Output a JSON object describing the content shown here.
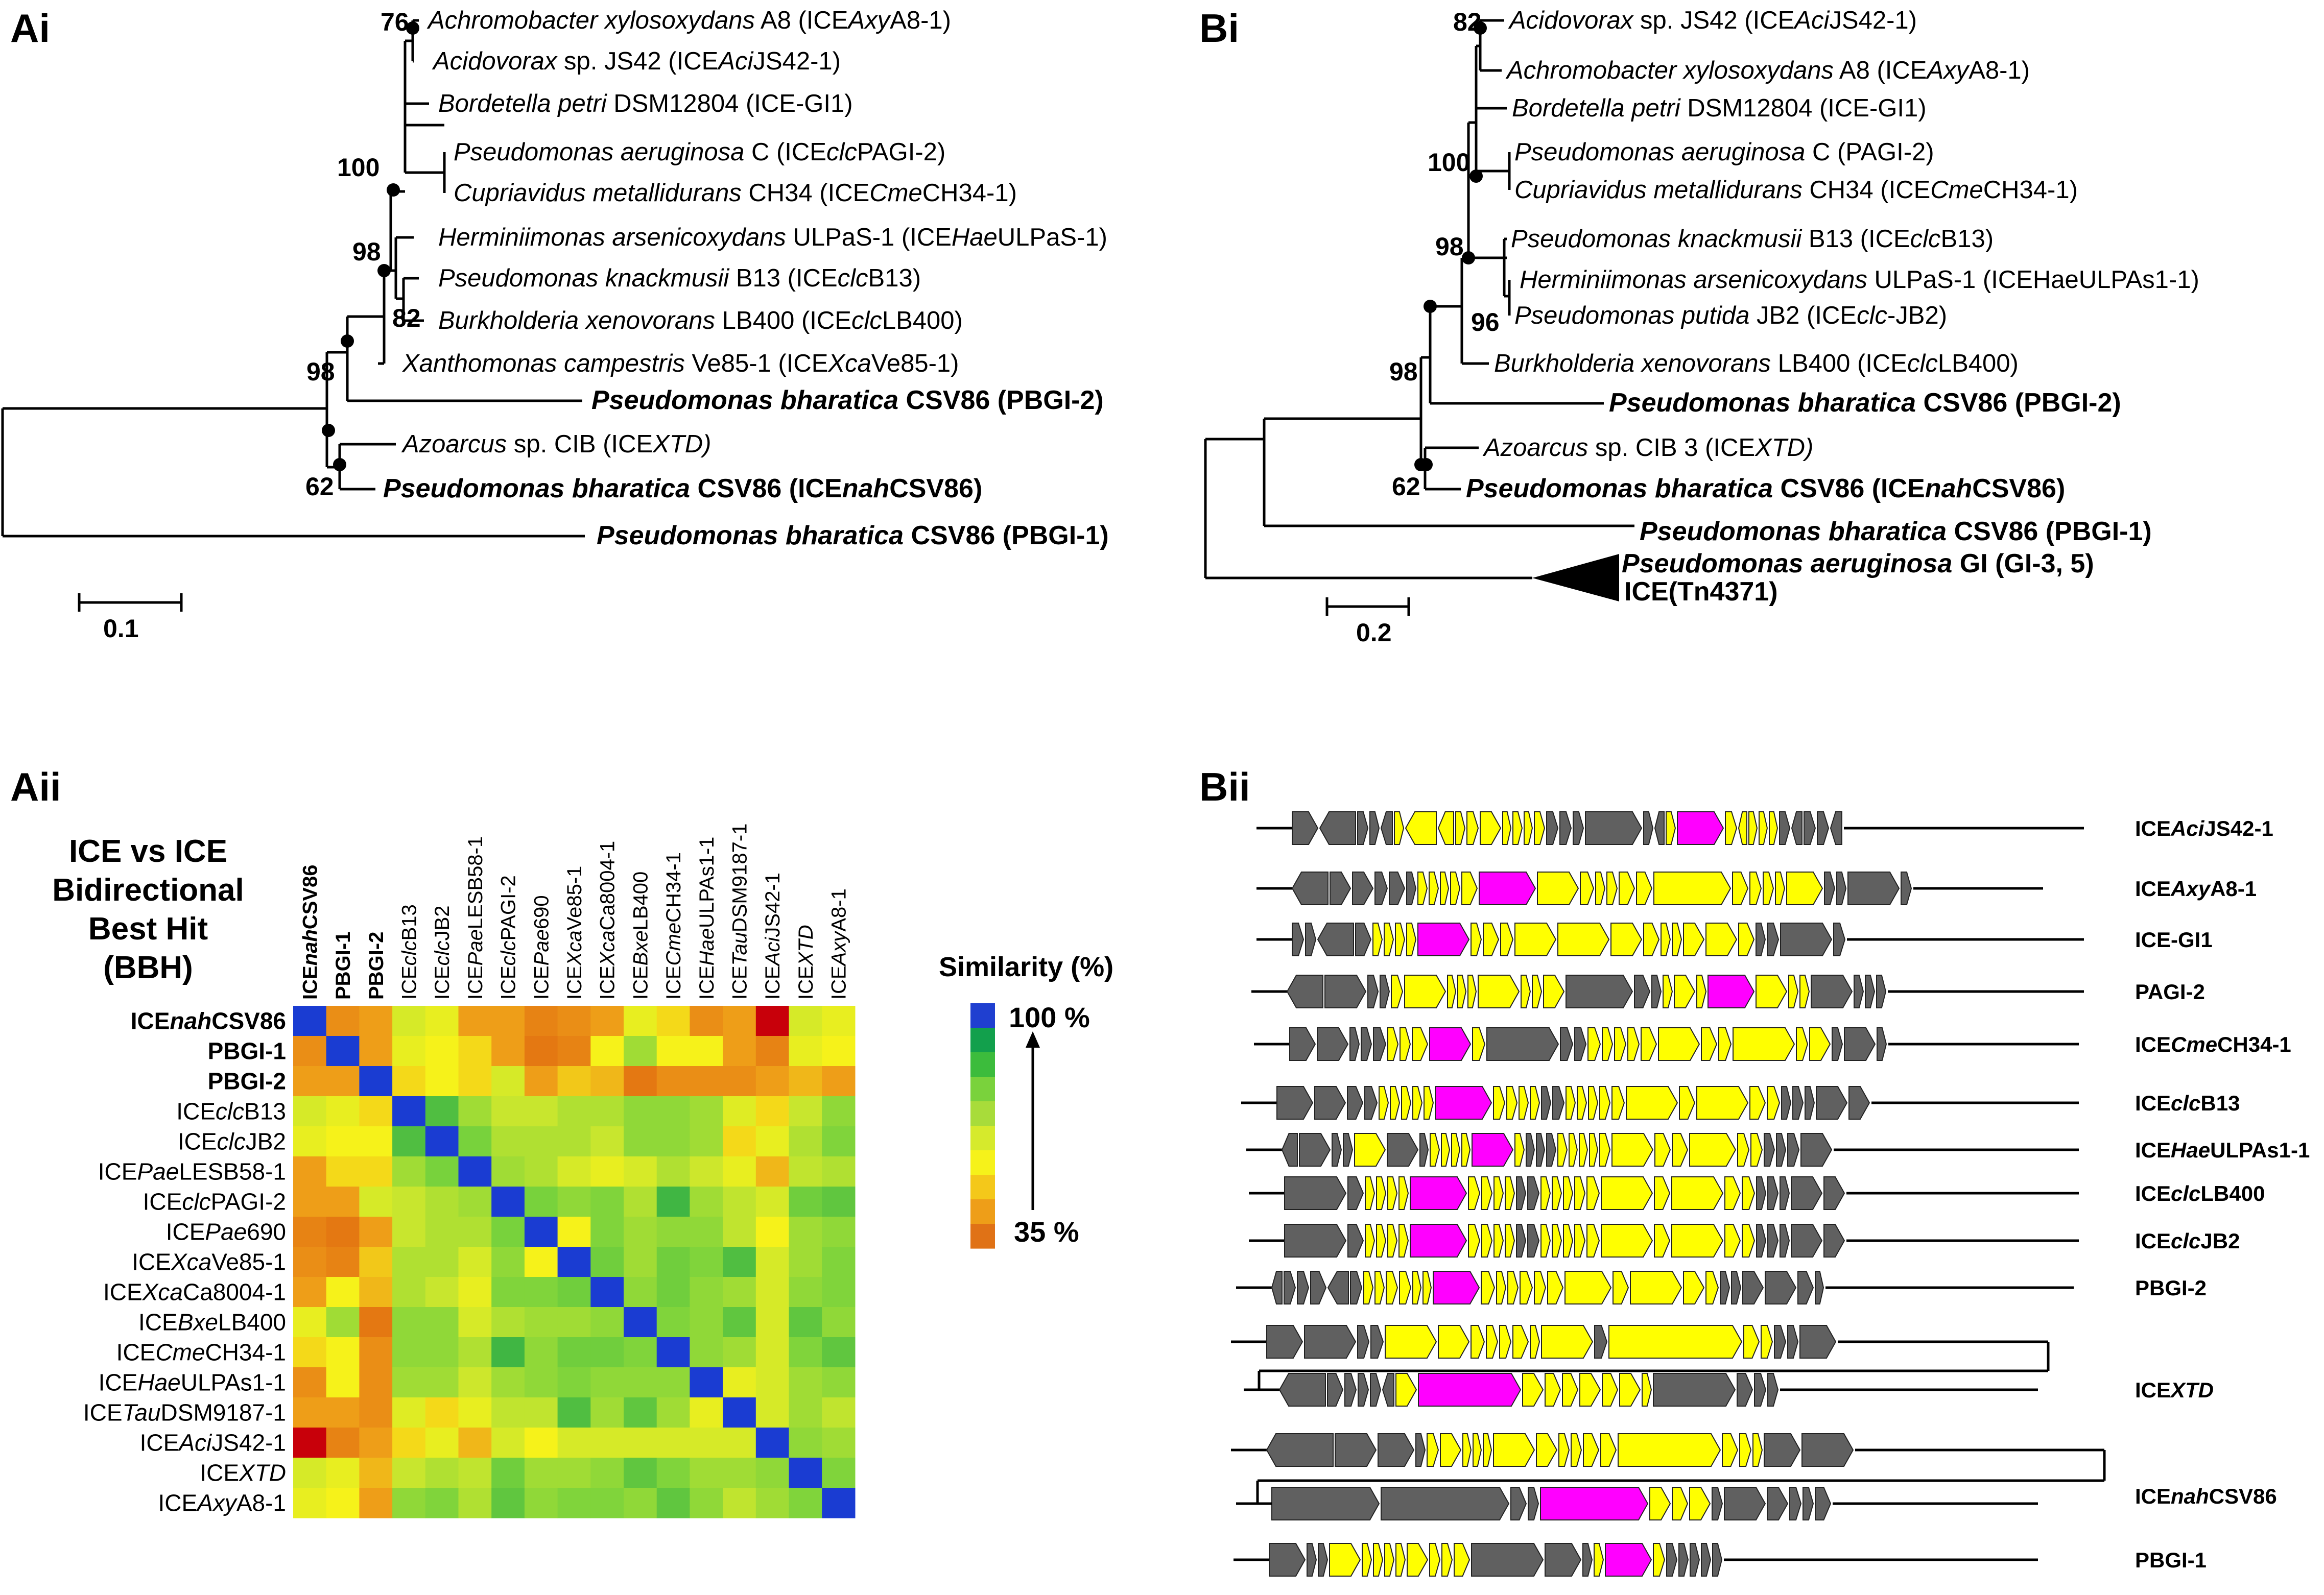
{
  "panels": {
    "ai": "Ai",
    "bi": "Bi",
    "aii": "Aii",
    "bii": "Bii"
  },
  "tree_a": {
    "scale_label": "0.1",
    "tips": [
      {
        "parts": [
          [
            "Achromobacter xylosoxydans",
            "i"
          ],
          [
            " A8 (ICE",
            ""
          ],
          [
            "Axy",
            "i"
          ],
          [
            "A8-1)",
            ""
          ]
        ],
        "bold": false
      },
      {
        "parts": [
          [
            "Acidovorax",
            "i"
          ],
          [
            " sp. JS42 (ICE",
            ""
          ],
          [
            "Aci",
            "i"
          ],
          [
            "JS42-1)",
            ""
          ]
        ],
        "bold": false
      },
      {
        "parts": [
          [
            "Bordetella petri",
            "i"
          ],
          [
            " DSM12804 (ICE-GI1)",
            ""
          ]
        ],
        "bold": false
      },
      {
        "parts": [
          [
            "Pseudomonas aeruginosa",
            "i"
          ],
          [
            " C (ICE",
            ""
          ],
          [
            "clc",
            "i"
          ],
          [
            "PAGI-2)",
            ""
          ]
        ],
        "bold": false
      },
      {
        "parts": [
          [
            "Cupriavidus metallidurans",
            "i"
          ],
          [
            " CH34 (ICE",
            ""
          ],
          [
            "Cme",
            "i"
          ],
          [
            "CH34-1)",
            ""
          ]
        ],
        "bold": false
      },
      {
        "parts": [
          [
            "Herminiimonas arsenicoxydans",
            "i"
          ],
          [
            " ULPaS-1 (ICE",
            ""
          ],
          [
            "Hae",
            "i"
          ],
          [
            "ULPaS-1)",
            ""
          ]
        ],
        "bold": false
      },
      {
        "parts": [
          [
            "Pseudomonas knackmusii",
            "i"
          ],
          [
            " B13 (ICE",
            ""
          ],
          [
            "clc",
            "i"
          ],
          [
            "B13)",
            ""
          ]
        ],
        "bold": false
      },
      {
        "parts": [
          [
            "Burkholderia xenovorans",
            "i"
          ],
          [
            " LB400 (ICE",
            ""
          ],
          [
            "clc",
            "i"
          ],
          [
            "LB400)",
            ""
          ]
        ],
        "bold": false
      },
      {
        "parts": [
          [
            "Xanthomonas campestris",
            "i"
          ],
          [
            " Ve85-1 (ICE",
            ""
          ],
          [
            "Xca",
            "i"
          ],
          [
            "Ve85-1)",
            ""
          ]
        ],
        "bold": false
      },
      {
        "parts": [
          [
            "Pseudomonas bharatica",
            "i"
          ],
          [
            " CSV86 (PBGI-2)",
            ""
          ]
        ],
        "bold": true
      },
      {
        "parts": [
          [
            "Azoarcus",
            "i"
          ],
          [
            " sp. CIB (ICE",
            ""
          ],
          [
            "XTD)",
            "i"
          ]
        ],
        "bold": false
      },
      {
        "parts": [
          [
            "Pseudomonas bharatica",
            "i"
          ],
          [
            " CSV86 (ICE",
            ""
          ],
          [
            "nah",
            "i"
          ],
          [
            "CSV86)",
            ""
          ]
        ],
        "bold": true
      },
      {
        "parts": [
          [
            "Pseudomonas bharatica",
            "i"
          ],
          [
            " CSV86 (PBGI-1)",
            ""
          ]
        ],
        "bold": true
      }
    ],
    "bootstraps": [
      "76",
      "100",
      "98",
      "98",
      "62",
      "82"
    ]
  },
  "tree_b": {
    "scale_label": "0.2",
    "tips": [
      {
        "parts": [
          [
            "Acidovorax",
            "i"
          ],
          [
            " sp. JS42 (ICE",
            ""
          ],
          [
            "Aci",
            "i"
          ],
          [
            "JS42-1)",
            ""
          ]
        ],
        "bold": false
      },
      {
        "parts": [
          [
            "Achromobacter xylosoxydans",
            "i"
          ],
          [
            " A8 (ICE",
            ""
          ],
          [
            "Axy",
            "i"
          ],
          [
            "A8-1)",
            ""
          ]
        ],
        "bold": false
      },
      {
        "parts": [
          [
            "Bordetella petri",
            "i"
          ],
          [
            " DSM12804 (ICE-GI1)",
            ""
          ]
        ],
        "bold": false
      },
      {
        "parts": [
          [
            "Pseudomonas aeruginosa",
            "i"
          ],
          [
            " C (PAGI-2)",
            ""
          ]
        ],
        "bold": false
      },
      {
        "parts": [
          [
            "Cupriavidus metallidurans",
            "i"
          ],
          [
            " CH34 (ICE",
            ""
          ],
          [
            "Cme",
            "i"
          ],
          [
            "CH34-1)",
            ""
          ]
        ],
        "bold": false
      },
      {
        "parts": [
          [
            "Pseudomonas knackmusii",
            "i"
          ],
          [
            " B13 (ICE",
            ""
          ],
          [
            "clc",
            "i"
          ],
          [
            "B13)",
            ""
          ]
        ],
        "bold": false
      },
      {
        "parts": [
          [
            "Herminiimonas arsenicoxydans",
            "i"
          ],
          [
            " ULPaS-1 (ICEHaeULPAs1-1)",
            ""
          ]
        ],
        "bold": false
      },
      {
        "parts": [
          [
            "Pseudomonas putida",
            "i"
          ],
          [
            " JB2 (ICE",
            ""
          ],
          [
            "clc",
            "i"
          ],
          [
            "-JB2)",
            ""
          ]
        ],
        "bold": false
      },
      {
        "parts": [
          [
            "Burkholderia xenovorans",
            "i"
          ],
          [
            " LB400 (ICE",
            ""
          ],
          [
            "clc",
            "i"
          ],
          [
            "LB400)",
            ""
          ]
        ],
        "bold": false
      },
      {
        "parts": [
          [
            "Pseudomonas bharatica",
            "i"
          ],
          [
            " CSV86 (PBGI-2)",
            ""
          ]
        ],
        "bold": true
      },
      {
        "parts": [
          [
            "Azoarcus",
            "i"
          ],
          [
            " sp. CIB 3 (ICE",
            ""
          ],
          [
            "XTD)",
            "i"
          ]
        ],
        "bold": false
      },
      {
        "parts": [
          [
            "Pseudomonas bharatica",
            "i"
          ],
          [
            " CSV86 (ICE",
            ""
          ],
          [
            "nah",
            "i"
          ],
          [
            "CSV86)",
            ""
          ]
        ],
        "bold": true
      },
      {
        "parts": [
          [
            "Pseudomonas bharatica",
            "i"
          ],
          [
            " CSV86 (PBGI-1)",
            ""
          ]
        ],
        "bold": true
      },
      {
        "parts": [
          [
            "Pseudomonas aeruginosa",
            "i"
          ],
          [
            " GI (GI-3, 5)",
            ""
          ]
        ],
        "bold": true
      },
      {
        "parts": [
          [
            "ICE(Tn4371)",
            ""
          ]
        ],
        "bold": true
      }
    ],
    "bootstraps": [
      "82",
      "100",
      "98",
      "98",
      "62",
      "96"
    ]
  },
  "heatmap": {
    "title_lines": [
      "ICE vs ICE",
      "Bidirectional",
      "Best Hit",
      "(BBH)"
    ],
    "legend_title": "Similarity (%)",
    "legend_max": "100 %",
    "legend_min": "35 %",
    "legend_colors": [
      "#1f3fd0",
      "#12a04c",
      "#3cbc3c",
      "#7ad23c",
      "#a8dc3a",
      "#d6ea2c",
      "#f6f21a",
      "#f4c81a",
      "#ee9e18",
      "#e07216"
    ],
    "labels": [
      {
        "parts": [
          [
            "ICE",
            ""
          ],
          [
            "nah",
            "i"
          ],
          [
            "CSV86",
            ""
          ]
        ],
        "bold": true
      },
      {
        "parts": [
          [
            "PBGI-1",
            ""
          ]
        ],
        "bold": true
      },
      {
        "parts": [
          [
            "PBGI-2",
            ""
          ]
        ],
        "bold": true
      },
      {
        "parts": [
          [
            "ICE",
            ""
          ],
          [
            "clc",
            "i"
          ],
          [
            "B13",
            ""
          ]
        ],
        "bold": false
      },
      {
        "parts": [
          [
            "ICE",
            ""
          ],
          [
            "clc",
            "i"
          ],
          [
            "JB2",
            ""
          ]
        ],
        "bold": false
      },
      {
        "parts": [
          [
            "ICE",
            ""
          ],
          [
            "Pae",
            "i"
          ],
          [
            "LESB58-1",
            ""
          ]
        ],
        "bold": false
      },
      {
        "parts": [
          [
            "ICE",
            ""
          ],
          [
            "clc",
            "i"
          ],
          [
            "PAGI-2",
            ""
          ]
        ],
        "bold": false
      },
      {
        "parts": [
          [
            "ICE",
            ""
          ],
          [
            "Pae",
            "i"
          ],
          [
            "690",
            ""
          ]
        ],
        "bold": false
      },
      {
        "parts": [
          [
            "ICE",
            ""
          ],
          [
            "Xca",
            "i"
          ],
          [
            "Ve85-1",
            ""
          ]
        ],
        "bold": false
      },
      {
        "parts": [
          [
            "ICE",
            ""
          ],
          [
            "Xca",
            "i"
          ],
          [
            "Ca8004-1",
            ""
          ]
        ],
        "bold": false
      },
      {
        "parts": [
          [
            "ICE",
            ""
          ],
          [
            "Bxe",
            "i"
          ],
          [
            "LB400",
            ""
          ]
        ],
        "bold": false
      },
      {
        "parts": [
          [
            "ICE",
            ""
          ],
          [
            "Cme",
            "i"
          ],
          [
            "CH34-1",
            ""
          ]
        ],
        "bold": false
      },
      {
        "parts": [
          [
            "ICE",
            ""
          ],
          [
            "Hae",
            "i"
          ],
          [
            "ULPAs1-1",
            ""
          ]
        ],
        "bold": false
      },
      {
        "parts": [
          [
            "ICE",
            ""
          ],
          [
            "Tau",
            "i"
          ],
          [
            "DSM9187-1",
            ""
          ]
        ],
        "bold": false
      },
      {
        "parts": [
          [
            "ICE",
            ""
          ],
          [
            "Aci",
            "i"
          ],
          [
            "JS42-1",
            ""
          ]
        ],
        "bold": false
      },
      {
        "parts": [
          [
            "ICE",
            ""
          ],
          [
            "XTD",
            "i"
          ]
        ],
        "bold": false
      },
      {
        "parts": [
          [
            "ICE",
            ""
          ],
          [
            "Axy",
            "i"
          ],
          [
            "A8-1",
            ""
          ]
        ],
        "bold": false
      }
    ],
    "values": [
      [
        100,
        42,
        45,
        62,
        58,
        45,
        45,
        40,
        42,
        45,
        58,
        52,
        42,
        45,
        28,
        62,
        58
      ],
      [
        42,
        100,
        45,
        58,
        55,
        52,
        45,
        38,
        40,
        55,
        70,
        55,
        55,
        45,
        40,
        58,
        55
      ],
      [
        45,
        45,
        100,
        52,
        55,
        52,
        62,
        45,
        50,
        48,
        38,
        42,
        42,
        42,
        45,
        48,
        45
      ],
      [
        62,
        58,
        52,
        100,
        80,
        70,
        65,
        65,
        68,
        68,
        72,
        72,
        70,
        60,
        52,
        65,
        72
      ],
      [
        58,
        55,
        55,
        80,
        100,
        75,
        68,
        68,
        68,
        65,
        72,
        72,
        70,
        52,
        58,
        68,
        74
      ],
      [
        45,
        52,
        52,
        70,
        75,
        100,
        70,
        68,
        62,
        58,
        62,
        68,
        64,
        58,
        48,
        66,
        68
      ],
      [
        45,
        45,
        62,
        65,
        68,
        70,
        100,
        75,
        72,
        74,
        68,
        82,
        70,
        66,
        62,
        76,
        78
      ],
      [
        40,
        38,
        45,
        65,
        68,
        68,
        75,
        100,
        55,
        74,
        70,
        72,
        72,
        66,
        55,
        70,
        72
      ],
      [
        42,
        40,
        50,
        68,
        68,
        62,
        72,
        55,
        100,
        76,
        70,
        76,
        74,
        80,
        62,
        70,
        74
      ],
      [
        45,
        55,
        48,
        68,
        65,
        58,
        74,
        74,
        76,
        100,
        72,
        76,
        72,
        70,
        62,
        72,
        74
      ],
      [
        58,
        70,
        38,
        72,
        72,
        62,
        68,
        70,
        70,
        72,
        100,
        74,
        72,
        78,
        62,
        78,
        72
      ],
      [
        52,
        55,
        42,
        72,
        72,
        68,
        82,
        72,
        76,
        76,
        74,
        100,
        72,
        70,
        62,
        74,
        78
      ],
      [
        42,
        55,
        42,
        70,
        70,
        64,
        70,
        72,
        74,
        72,
        72,
        72,
        100,
        58,
        62,
        70,
        72
      ],
      [
        45,
        45,
        42,
        60,
        52,
        58,
        66,
        66,
        80,
        70,
        78,
        70,
        58,
        100,
        62,
        70,
        66
      ],
      [
        28,
        40,
        45,
        52,
        58,
        48,
        62,
        55,
        62,
        62,
        62,
        62,
        62,
        62,
        100,
        72,
        70
      ],
      [
        62,
        58,
        48,
        65,
        68,
        66,
        76,
        70,
        70,
        72,
        78,
        74,
        70,
        70,
        72,
        100,
        74
      ],
      [
        58,
        55,
        45,
        72,
        74,
        68,
        78,
        72,
        74,
        74,
        72,
        78,
        72,
        66,
        70,
        74,
        100
      ]
    ]
  },
  "gene_maps": {
    "colors": {
      "core": "#ffff00",
      "integrase": "#ff00ff",
      "other": "#606060"
    },
    "names": [
      {
        "parts": [
          [
            "ICE",
            ""
          ],
          [
            "Aci",
            "i"
          ],
          [
            "JS42-1",
            ""
          ]
        ]
      },
      {
        "parts": [
          [
            "ICE",
            ""
          ],
          [
            "Axy",
            "i"
          ],
          [
            "A8-1",
            ""
          ]
        ]
      },
      {
        "parts": [
          [
            "ICE-GI1",
            ""
          ]
        ]
      },
      {
        "parts": [
          [
            "PAGI-2",
            ""
          ]
        ]
      },
      {
        "parts": [
          [
            "ICE",
            ""
          ],
          [
            "Cme",
            "i"
          ],
          [
            "CH34-1",
            ""
          ]
        ]
      },
      {
        "parts": [
          [
            "ICE",
            ""
          ],
          [
            "clc",
            "i"
          ],
          [
            "B13",
            ""
          ]
        ]
      },
      {
        "parts": [
          [
            "ICE",
            ""
          ],
          [
            "Hae",
            "i"
          ],
          [
            "ULPAs1-1",
            ""
          ]
        ]
      },
      {
        "parts": [
          [
            "ICE",
            ""
          ],
          [
            "clc",
            "i"
          ],
          [
            "LB400",
            ""
          ]
        ]
      },
      {
        "parts": [
          [
            "ICE",
            ""
          ],
          [
            "clc",
            "i"
          ],
          [
            "JB2",
            ""
          ]
        ]
      },
      {
        "parts": [
          [
            "PBGI-2",
            ""
          ]
        ]
      },
      {
        "parts": [
          [
            "ICE",
            ""
          ],
          [
            "XTD",
            "i"
          ]
        ]
      },
      {
        "parts": [
          [
            "ICE",
            ""
          ],
          [
            "nah",
            "i"
          ],
          [
            "CSV86",
            ""
          ]
        ]
      },
      {
        "parts": [
          [
            "PBGI-1",
            ""
          ]
        ]
      }
    ]
  }
}
